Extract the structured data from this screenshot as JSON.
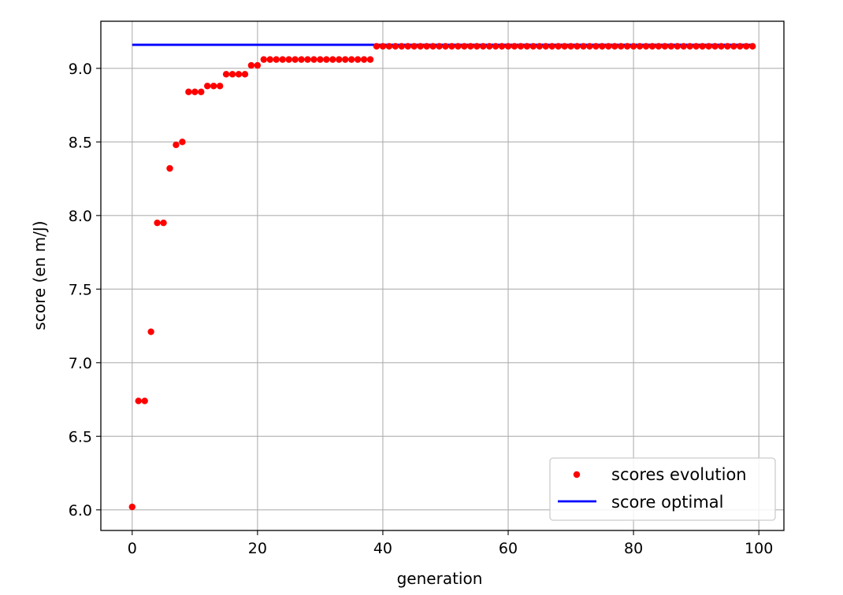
{
  "chart_data": {
    "type": "scatter",
    "xlabel": "generation",
    "ylabel": "score (en m/J)",
    "xlim": [
      -5,
      104
    ],
    "ylim": [
      5.86,
      9.32
    ],
    "xticks": [
      0,
      20,
      40,
      60,
      80,
      100
    ],
    "xtick_labels": [
      "0",
      "20",
      "40",
      "60",
      "80",
      "100"
    ],
    "yticks": [
      6.0,
      6.5,
      7.0,
      7.5,
      8.0,
      8.5,
      9.0
    ],
    "ytick_labels": [
      "6.0",
      "6.5",
      "7.0",
      "7.5",
      "8.0",
      "8.5",
      "9.0"
    ],
    "grid": true,
    "legend": "lower-right",
    "series": [
      {
        "name": "scores evolution",
        "kind": "points",
        "color": "#ff0000",
        "x": [
          0,
          1,
          2,
          3,
          4,
          5,
          6,
          7,
          8,
          9,
          10,
          11,
          12,
          13,
          14,
          15,
          16,
          17,
          18,
          19,
          20,
          21,
          22,
          23,
          24,
          25,
          26,
          27,
          28,
          29,
          30,
          31,
          32,
          33,
          34,
          35,
          36,
          37,
          38,
          39,
          40,
          41,
          42,
          43,
          44,
          45,
          46,
          47,
          48,
          49,
          50,
          51,
          52,
          53,
          54,
          55,
          56,
          57,
          58,
          59,
          60,
          61,
          62,
          63,
          64,
          65,
          66,
          67,
          68,
          69,
          70,
          71,
          72,
          73,
          74,
          75,
          76,
          77,
          78,
          79,
          80,
          81,
          82,
          83,
          84,
          85,
          86,
          87,
          88,
          89,
          90,
          91,
          92,
          93,
          94,
          95,
          96,
          97,
          98,
          99
        ],
        "y": [
          6.02,
          6.74,
          6.74,
          7.21,
          7.95,
          7.95,
          8.32,
          8.48,
          8.5,
          8.84,
          8.84,
          8.84,
          8.88,
          8.88,
          8.88,
          8.96,
          8.96,
          8.96,
          8.96,
          9.02,
          9.02,
          9.06,
          9.06,
          9.06,
          9.06,
          9.06,
          9.06,
          9.06,
          9.06,
          9.06,
          9.06,
          9.06,
          9.06,
          9.06,
          9.06,
          9.06,
          9.06,
          9.06,
          9.06,
          9.15,
          9.15,
          9.15,
          9.15,
          9.15,
          9.15,
          9.15,
          9.15,
          9.15,
          9.15,
          9.15,
          9.15,
          9.15,
          9.15,
          9.15,
          9.15,
          9.15,
          9.15,
          9.15,
          9.15,
          9.15,
          9.15,
          9.15,
          9.15,
          9.15,
          9.15,
          9.15,
          9.15,
          9.15,
          9.15,
          9.15,
          9.15,
          9.15,
          9.15,
          9.15,
          9.15,
          9.15,
          9.15,
          9.15,
          9.15,
          9.15,
          9.15,
          9.15,
          9.15,
          9.15,
          9.15,
          9.15,
          9.15,
          9.15,
          9.15,
          9.15,
          9.15,
          9.15,
          9.15,
          9.15,
          9.15,
          9.15,
          9.15,
          9.15,
          9.15,
          9.15
        ]
      },
      {
        "name": "score optimal",
        "kind": "line",
        "color": "#0000ff",
        "x": [
          0,
          99
        ],
        "y": [
          9.16,
          9.16
        ]
      }
    ]
  }
}
